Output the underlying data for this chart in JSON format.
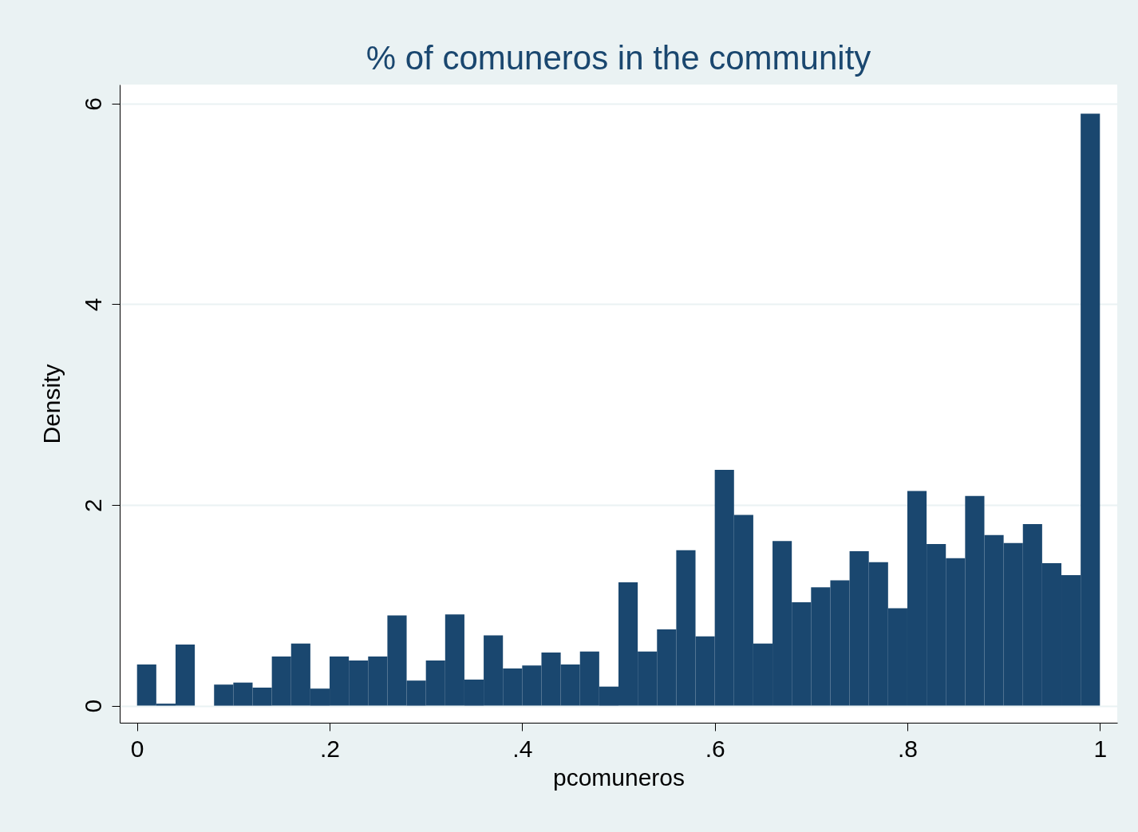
{
  "chart_data": {
    "type": "histogram",
    "title": "% of comuneros in the community",
    "xlabel": "pcomuneros",
    "ylabel": "Density",
    "color": "#1a476f",
    "bins": [
      0,
      0.02,
      0.04,
      0.06,
      0.08,
      0.1,
      0.12,
      0.14,
      0.16,
      0.18,
      0.2,
      0.22,
      0.24,
      0.26,
      0.28,
      0.3,
      0.32,
      0.34,
      0.36,
      0.38,
      0.4,
      0.42,
      0.44,
      0.46,
      0.48,
      0.5,
      0.52,
      0.54,
      0.56,
      0.58,
      0.6,
      0.62,
      0.64,
      0.66,
      0.68,
      0.7,
      0.72,
      0.74,
      0.76,
      0.78,
      0.8,
      0.82,
      0.84,
      0.86,
      0.88,
      0.9,
      0.92,
      0.94,
      0.96,
      0.98,
      1
    ],
    "values": [
      0.41,
      0.02,
      0.61,
      0,
      0.21,
      0.23,
      0.18,
      0.49,
      0.62,
      0.17,
      0.49,
      0.45,
      0.49,
      0.9,
      0.25,
      0.45,
      0.91,
      0.26,
      0.7,
      0.37,
      0.4,
      0.53,
      0.41,
      0.54,
      0.19,
      1.23,
      0.54,
      0.76,
      1.55,
      0.69,
      2.35,
      1.9,
      0.62,
      1.64,
      1.03,
      1.18,
      1.25,
      1.54,
      1.43,
      0.97,
      2.14,
      1.61,
      1.47,
      2.09,
      1.7,
      1.62,
      1.81,
      1.42,
      1.3,
      5.9
    ],
    "xlim": [
      -0.018,
      1.018
    ],
    "ylim": [
      -0.17,
      6.19
    ],
    "xticks": [
      0,
      {
        "value": 0.2,
        "label": ".2"
      },
      {
        "value": 0.4,
        "label": ".4"
      },
      {
        "value": 0.6,
        "label": ".6"
      },
      {
        "value": 0.8,
        "label": ".8"
      },
      1
    ],
    "yticks": [
      0,
      2,
      4,
      6
    ],
    "grid": "y"
  }
}
